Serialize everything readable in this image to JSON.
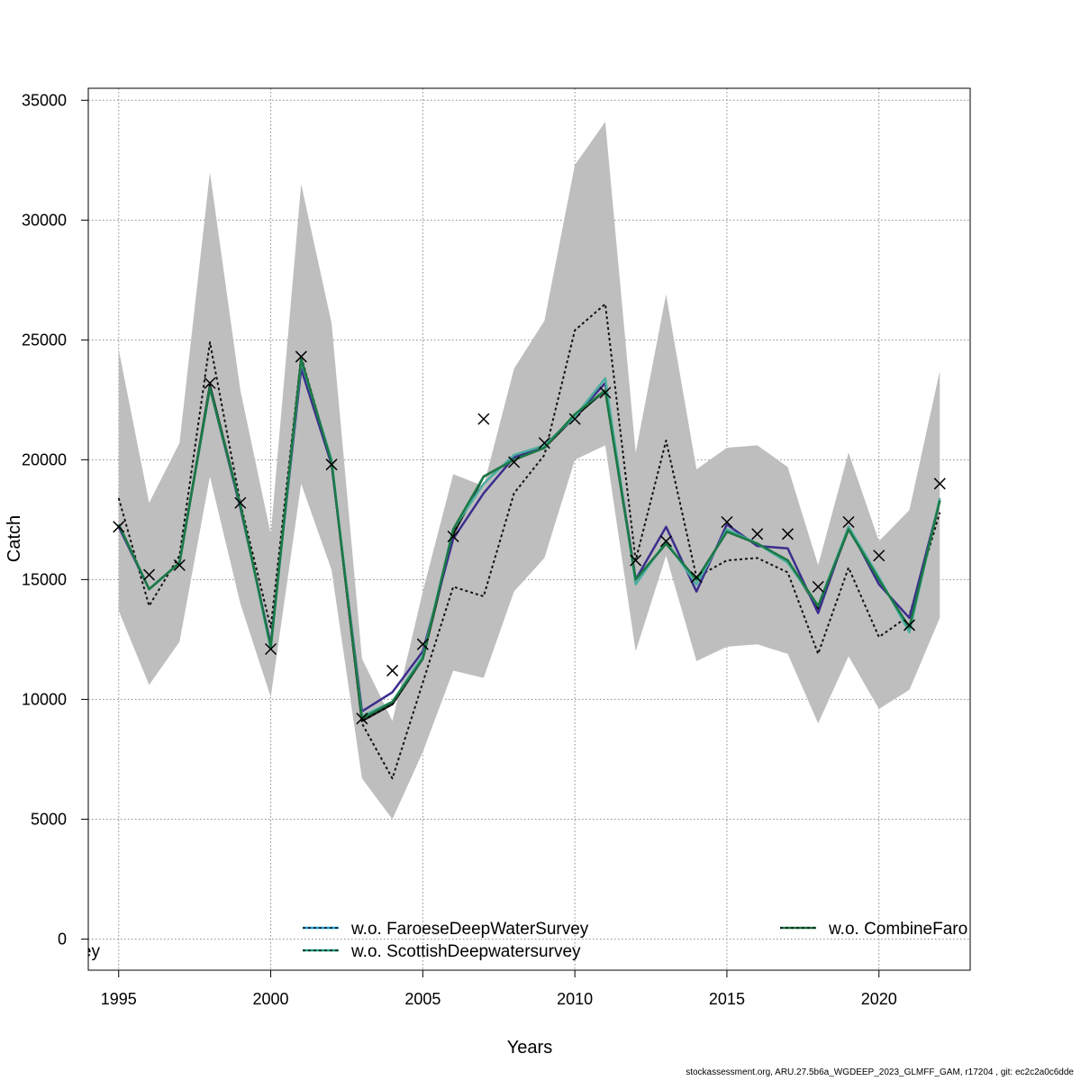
{
  "footer_text": "stockassessment.org, ARU.27.5b6a_WGDEEP_2023_GLMFF_GAM, r17204 , git: ec2c2a0c6dde",
  "chart_data": {
    "type": "line",
    "title": "",
    "xlabel": "Years",
    "ylabel": "Catch",
    "xlim": [
      1994,
      2023
    ],
    "ylim": [
      -1300,
      35500
    ],
    "x_ticks": [
      1995,
      2000,
      2005,
      2010,
      2015,
      2020
    ],
    "y_ticks": [
      0,
      5000,
      10000,
      15000,
      20000,
      25000,
      30000,
      35000
    ],
    "grid": true,
    "x": [
      1995,
      1996,
      1997,
      1998,
      1999,
      2000,
      2001,
      2002,
      2003,
      2004,
      2005,
      2006,
      2007,
      2008,
      2009,
      2010,
      2011,
      2012,
      2013,
      2014,
      2015,
      2016,
      2017,
      2018,
      2019,
      2020,
      2021,
      2022
    ],
    "band": {
      "lower": [
        13700,
        10600,
        12400,
        19300,
        14000,
        10100,
        19000,
        15400,
        6700,
        5000,
        7800,
        11200,
        10900,
        14500,
        15900,
        20000,
        20600,
        12000,
        16000,
        11600,
        12200,
        12300,
        11900,
        9000,
        11800,
        9600,
        10400,
        13400
      ],
      "upper": [
        24600,
        18200,
        20700,
        32000,
        22900,
        16900,
        31500,
        25700,
        11700,
        9100,
        14500,
        19400,
        18900,
        23800,
        25800,
        32300,
        34100,
        20300,
        26900,
        19600,
        20500,
        20600,
        19700,
        15600,
        20300,
        16600,
        17900,
        23700
      ],
      "color": "#bebebe"
    },
    "observed": [
      17200,
      15200,
      15600,
      23200,
      18200,
      12100,
      24300,
      19800,
      9200,
      11200,
      12300,
      16800,
      21700,
      19900,
      20700,
      21700,
      22800,
      15800,
      16600,
      15100,
      17400,
      16900,
      16900,
      14700,
      17400,
      16000,
      13100,
      19000
    ],
    "series": [
      {
        "name": "",
        "color": "#000000",
        "dashed": false,
        "values": [
          17300,
          14600,
          15700,
          23100,
          18100,
          12200,
          24200,
          19900,
          9100,
          9800,
          11700,
          16900,
          19300,
          20000,
          20500,
          21800,
          22900,
          15000,
          16500,
          15000,
          17000,
          16500,
          15800,
          13800,
          17100,
          15000,
          13000,
          18300
        ]
      },
      {
        "name": "w.o. FaroeseDeepWaterSurvey",
        "color": "#1f1f1f",
        "dashed": true,
        "values": [
          17300,
          14600,
          15700,
          23100,
          18100,
          12200,
          24200,
          19900,
          9100,
          9800,
          11700,
          16900,
          19300,
          20000,
          20500,
          21800,
          22900,
          15000,
          16500,
          15000,
          17000,
          16500,
          15800,
          13800,
          17100,
          15000,
          13000,
          18300
        ]
      },
      {
        "name": "w.o. ScottishDeepwatersurvey",
        "color": "#1f1f1f",
        "dashed": true,
        "values": [
          17300,
          14600,
          15700,
          23100,
          18100,
          12200,
          24200,
          19900,
          9100,
          9800,
          11700,
          16900,
          19300,
          20000,
          20500,
          21800,
          22900,
          15000,
          16500,
          15000,
          17000,
          16500,
          15800,
          13800,
          17100,
          15000,
          13000,
          18300
        ]
      },
      {
        "name": "w.o. CombineFaro",
        "color": "#111111",
        "dashed": true,
        "values": [
          18400,
          13900,
          16000,
          24900,
          18200,
          13000,
          24300,
          19900,
          9000,
          6700,
          10700,
          14700,
          14300,
          18600,
          20200,
          25400,
          26500,
          15800,
          20800,
          15100,
          15800,
          15900,
          15300,
          11900,
          15500,
          12600,
          13500,
          17800
        ]
      },
      {
        "name": "",
        "color": "#3b2e8c",
        "dashed": false,
        "values": [
          17200,
          14600,
          15700,
          23000,
          18000,
          12300,
          23800,
          19800,
          9500,
          10300,
          12000,
          16700,
          18600,
          20100,
          20600,
          21800,
          23200,
          15000,
          17200,
          14500,
          17300,
          16400,
          16300,
          13600,
          17200,
          14800,
          13400,
          18300
        ]
      },
      {
        "name": "",
        "color": "#4aaea0",
        "dashed": false,
        "values": [
          17300,
          14600,
          15700,
          23000,
          18100,
          12100,
          24100,
          20000,
          9300,
          9900,
          11800,
          17100,
          19000,
          20200,
          20600,
          21800,
          23400,
          14800,
          16600,
          14800,
          17100,
          16500,
          15700,
          13900,
          17200,
          15100,
          12800,
          18400
        ]
      },
      {
        "name": "",
        "color": "#1a7a45",
        "dashed": false,
        "values": [
          17300,
          14600,
          15700,
          23000,
          18100,
          12200,
          24200,
          19900,
          9200,
          9900,
          11700,
          17100,
          19300,
          20000,
          20500,
          21900,
          22900,
          15000,
          16500,
          15000,
          17000,
          16500,
          15800,
          13900,
          17100,
          15000,
          13000,
          18300
        ]
      }
    ],
    "legend": {
      "placement": "bottom",
      "clipped_left_text": "ey",
      "entries": [
        {
          "label": "w.o. FaroeseDeepWaterSurvey",
          "color": "#1f9bd7"
        },
        {
          "label": "w.o. ScottishDeepwatersurvey",
          "color": "#1fa080"
        },
        {
          "label": "w.o. CombineFaro",
          "color": "#1a7a45"
        }
      ]
    }
  }
}
